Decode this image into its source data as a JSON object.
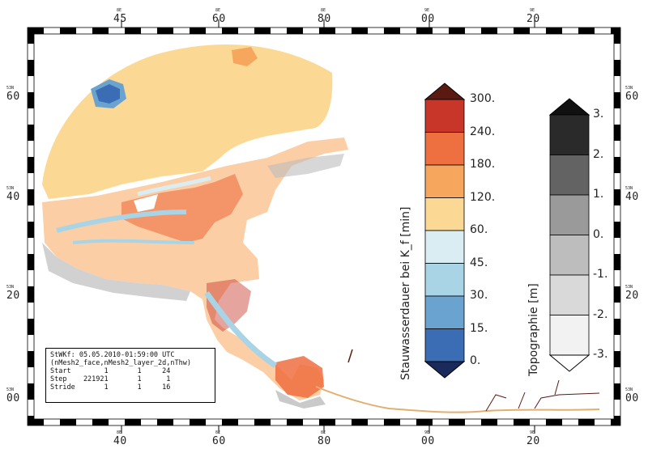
{
  "frame": {
    "top_labels": [
      {
        "major": "45",
        "minor": "8E"
      },
      {
        "major": "60",
        "minor": "8E"
      },
      {
        "major": "80",
        "minor": "8E"
      },
      {
        "major": "00",
        "minor": "9E"
      },
      {
        "major": "20",
        "minor": "9E"
      }
    ],
    "bottom_labels": [
      {
        "major": "40",
        "minor": "8E"
      },
      {
        "major": "60",
        "minor": "8E"
      },
      {
        "major": "80",
        "minor": "8E"
      },
      {
        "major": "00",
        "minor": "9E"
      },
      {
        "major": "20",
        "minor": "9E"
      }
    ],
    "left_labels": [
      {
        "major": "60",
        "minor": "53N"
      },
      {
        "major": "40",
        "minor": "53N"
      },
      {
        "major": "20",
        "minor": "53N"
      },
      {
        "major": "00",
        "minor": "53N"
      }
    ],
    "right_labels": [
      {
        "major": "60",
        "minor": "53N"
      },
      {
        "major": "40",
        "minor": "53N"
      },
      {
        "major": "20",
        "minor": "53N"
      },
      {
        "major": "00",
        "minor": "53N"
      }
    ]
  },
  "colorbar_main": {
    "title": "Stauwasserdauer bei K_f [min]",
    "labels": [
      "300.",
      "240.",
      "180.",
      "120.",
      "60.",
      "45.",
      "30.",
      "15.",
      "0."
    ],
    "colors": [
      "#5a1a12",
      "#c8362a",
      "#ee6f3f",
      "#f7a65d",
      "#fbd995",
      "#daedf3",
      "#a8d4e6",
      "#6aa3d0",
      "#3a6db3",
      "#1a2a5a"
    ]
  },
  "colorbar_topo": {
    "title": "Topographie [m]",
    "labels": [
      "3.",
      "2.",
      "1.",
      "0.",
      "-1.",
      "-2.",
      "-3."
    ],
    "colors": [
      "#111111",
      "#2a2a2a",
      "#636363",
      "#9a9a9a",
      "#bdbdbd",
      "#d9d9d9",
      "#f2f2f2",
      "#ffffff"
    ]
  },
  "info": {
    "line1": "StWKf: 05.05.2010-01:59:00 UTC",
    "line2": "(nMesh2_face,nMesh2_layer_2d,nThw)",
    "line3": "Start        1       1     24",
    "line4": "Step    221921       1      1",
    "line5": "Stride       1       1     16"
  }
}
